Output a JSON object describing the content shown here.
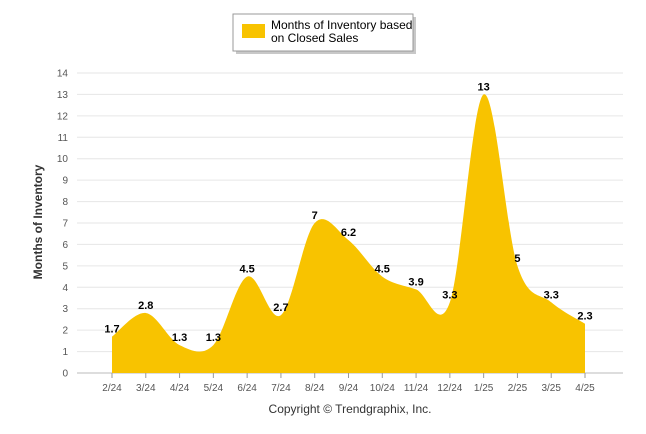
{
  "chart_data": {
    "type": "area",
    "categories": [
      "2/24",
      "3/24",
      "4/24",
      "5/24",
      "6/24",
      "7/24",
      "8/24",
      "9/24",
      "10/24",
      "11/24",
      "12/24",
      "1/25",
      "2/25",
      "3/25",
      "4/25"
    ],
    "series": [
      {
        "name_lines": [
          "Months of Inventory based",
          "on Closed Sales"
        ],
        "values": [
          1.7,
          2.8,
          1.3,
          1.3,
          4.5,
          2.7,
          7,
          6.2,
          4.5,
          3.9,
          3.3,
          13,
          5,
          3.3,
          2.3
        ],
        "labels": [
          "1.7",
          "2.8",
          "1.3",
          "1.3",
          "4.5",
          "2.7",
          "7",
          "6.2",
          "4.5",
          "3.9",
          "3.3",
          "13",
          "5",
          "3.3",
          "2.3"
        ]
      }
    ],
    "ylabel": "Months of Inventory",
    "ylim": [
      0,
      14
    ],
    "yticks": [
      "0",
      "1",
      "2",
      "3",
      "4",
      "5",
      "6",
      "7",
      "8",
      "9",
      "10",
      "11",
      "12",
      "13",
      "14"
    ],
    "grid": true,
    "legend": "top",
    "color": "#f8c300"
  },
  "footer": "Copyright © Trendgraphix, Inc."
}
